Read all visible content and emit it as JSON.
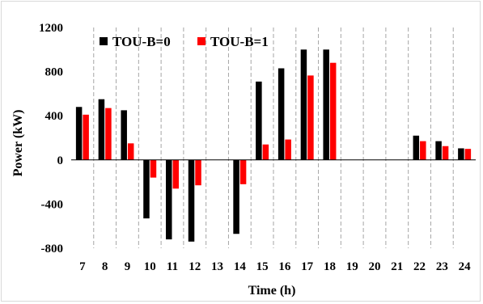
{
  "chart_data": {
    "type": "bar",
    "xlabel": "Time (h)",
    "ylabel": "Power (kW)",
    "ylim": [
      -800,
      1200
    ],
    "yticks": [
      "1200",
      "800",
      "400",
      "0",
      "-400",
      "-800"
    ],
    "ytick_values": [
      1200,
      800,
      400,
      0,
      -400,
      -800
    ],
    "categories": [
      "7",
      "8",
      "9",
      "10",
      "11",
      "12",
      "13",
      "14",
      "15",
      "16",
      "17",
      "18",
      "19",
      "20",
      "21",
      "22",
      "23",
      "24"
    ],
    "series": [
      {
        "name": "TOU-B=0",
        "color": "#000000",
        "values": [
          480,
          550,
          450,
          -530,
          -720,
          -740,
          0,
          -670,
          710,
          830,
          1000,
          1000,
          0,
          0,
          0,
          220,
          170,
          105
        ]
      },
      {
        "name": "TOU-B=1",
        "color": "#ff0000",
        "values": [
          410,
          470,
          150,
          -160,
          -260,
          -230,
          0,
          -220,
          140,
          185,
          765,
          880,
          0,
          0,
          0,
          170,
          125,
          100
        ]
      }
    ],
    "grid": "vertical-dashed",
    "legend_position": "top-left"
  }
}
